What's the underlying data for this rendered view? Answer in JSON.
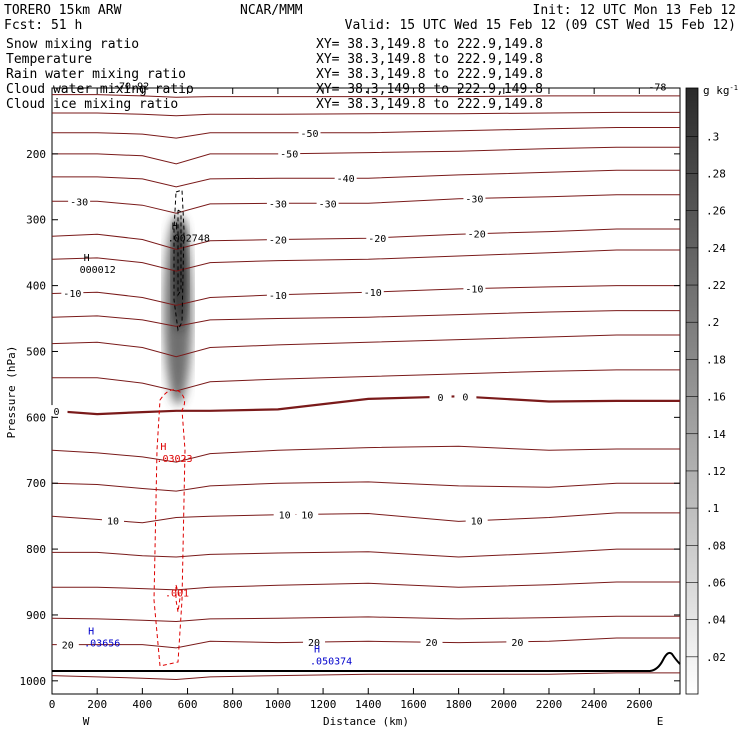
{
  "header": {
    "model": "TORERO  15km ARW",
    "org": "NCAR/MMM",
    "init": "Init: 12 UTC Mon 13 Feb 12",
    "fcst": "Fcst:   51 h",
    "valid": "Valid: 15 UTC Wed 15 Feb 12 (09 CST Wed 15 Feb 12)"
  },
  "legend": [
    {
      "label": "Snow mixing ratio",
      "xy": "XY=  38.3,149.8 to 222.9,149.8",
      "color": "#000000"
    },
    {
      "label": "Temperature",
      "xy": "XY=  38.3,149.8 to 222.9,149.8",
      "color": "#cc0000"
    },
    {
      "label": "Rain water mixing ratio",
      "xy": "XY=  38.3,149.8 to 222.9,149.8",
      "color": "#cc0000"
    },
    {
      "label": "Cloud water mixing ratio",
      "xy": "XY=  38.3,149.8 to 222.9,149.8",
      "color": "#0000cc"
    },
    {
      "label": "Cloud ice mixing ratio",
      "xy": "XY=  38.3,149.8 to 222.9,149.8",
      "color": "#000000"
    }
  ],
  "chart_data": {
    "type": "cross-section",
    "xlabel": "Distance (km)",
    "ylabel": "Pressure (hPa)",
    "xlim": [
      0,
      2780
    ],
    "ylim": [
      1020,
      100
    ],
    "x_ticks": [
      "0",
      "200",
      "400",
      "600",
      "800",
      "1000",
      "1200",
      "1400",
      "1600",
      "1800",
      "2000",
      "2200",
      "2400",
      "2600"
    ],
    "y_ticks": [
      "200",
      "300",
      "400",
      "500",
      "600",
      "700",
      "800",
      "900",
      "1000"
    ],
    "x_end_labels": {
      "left": "W",
      "right": "E"
    },
    "temperature_isotherms_labeled": [
      "-78",
      "-70.92",
      "-50",
      "-40",
      "-30",
      "-20",
      "-10",
      "0",
      "10",
      "20"
    ],
    "colorbar": {
      "unit": "g kg",
      "unit_exp": "-1",
      "ticks": [
        ".02",
        ".04",
        ".06",
        ".08",
        ".1",
        ".12",
        ".14",
        ".16",
        ".18",
        ".2",
        ".22",
        ".24",
        ".26",
        ".28",
        ".3"
      ]
    },
    "maxima": [
      {
        "mark": "H",
        "value": ".002748",
        "field": "snow",
        "x_km": 530,
        "p_hPa": 330
      },
      {
        "mark": "H",
        "value": "000012",
        "field": "cloud ice",
        "x_km": 140,
        "p_hPa": 378
      },
      {
        "mark": "H",
        "value": ".03023",
        "field": "rain",
        "x_km": 480,
        "p_hPa": 665
      },
      {
        "mark": "H",
        "value": ".050374",
        "field": "cloud water",
        "x_km": 1160,
        "p_hPa": 972
      },
      {
        "mark": "H",
        "value": ".03656",
        "field": "cloud water",
        "x_km": 160,
        "p_hPa": 945
      }
    ],
    "rain_contour_label": ".001",
    "colors": {
      "temperature": "#7a1a1a",
      "rain": "#dd0000",
      "cloud_water": "#0000cc",
      "snow": "#000000"
    }
  }
}
